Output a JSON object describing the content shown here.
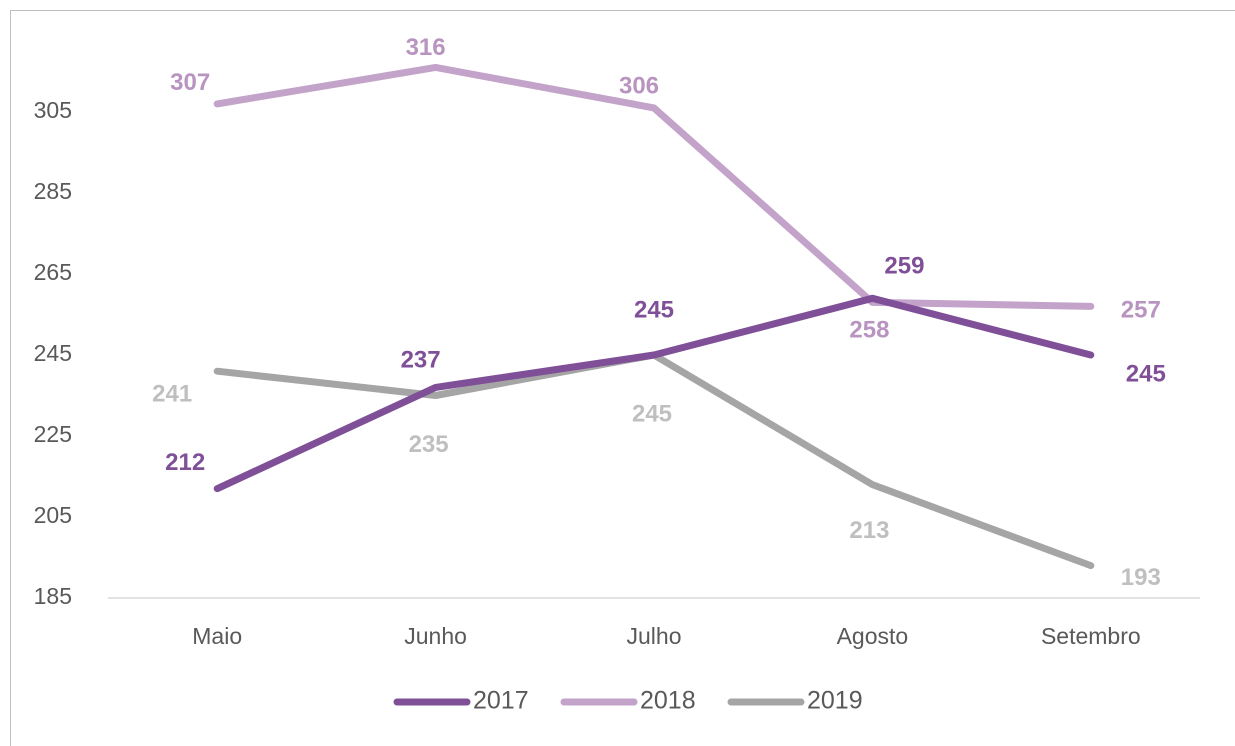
{
  "chart_data": {
    "type": "line",
    "categories": [
      "Maio",
      "Junho",
      "Julho",
      "Agosto",
      "Setembro"
    ],
    "series": [
      {
        "name": "2017",
        "color": "#7f4f97",
        "label_color": "#7f4f97",
        "values": [
          212,
          237,
          245,
          259,
          245
        ]
      },
      {
        "name": "2018",
        "color": "#c3a3c9",
        "label_color": "#b994c0",
        "values": [
          307,
          316,
          306,
          258,
          257
        ]
      },
      {
        "name": "2019",
        "color": "#a5a5a5",
        "label_color": "#bfbfbf",
        "values": [
          241,
          235,
          245,
          213,
          193
        ]
      }
    ],
    "ylim": [
      185,
      325
    ],
    "yticks": [
      185,
      205,
      225,
      245,
      265,
      285,
      305
    ],
    "grid": false,
    "legend": "bottom"
  }
}
